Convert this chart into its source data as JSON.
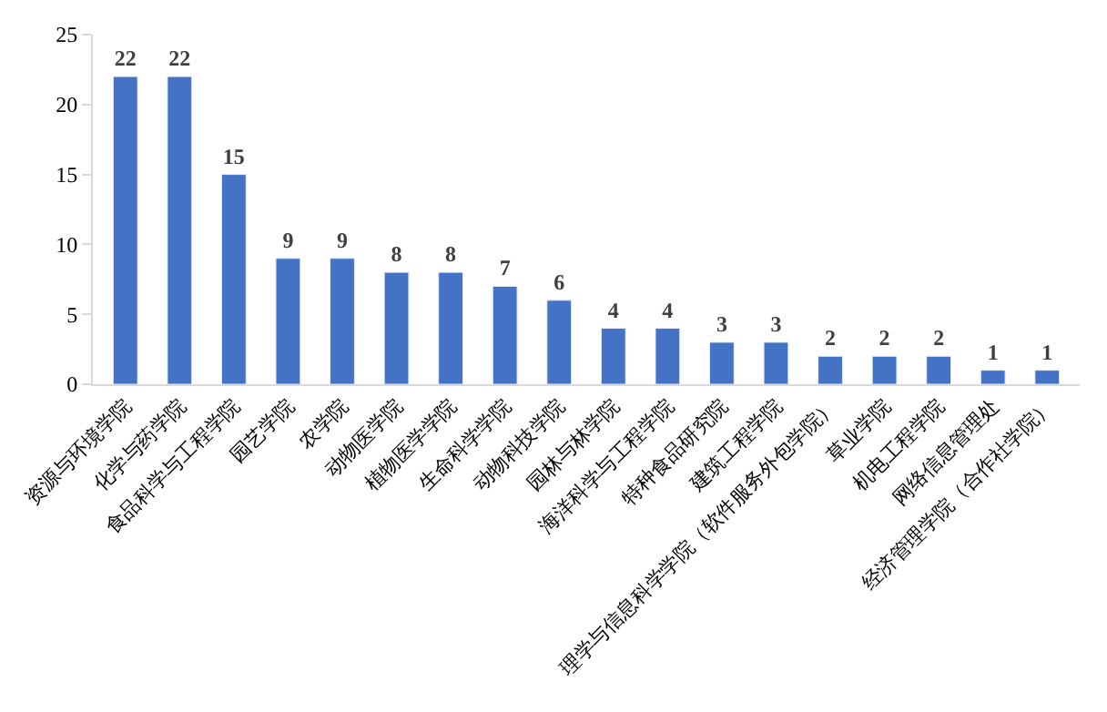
{
  "chart_data": {
    "type": "bar",
    "categories": [
      "资源与环境学院",
      "化学与药学院",
      "食品科学与工程学院",
      "园艺学院",
      "农学院",
      "动物医学院",
      "植物医学学院",
      "生命科学学院",
      "动物科技学院",
      "园林与林学院",
      "海洋科学与工程学院",
      "特种食品研究院",
      "建筑工程学院",
      "理学与信息科学学院（软件服务外包学院）",
      "草业学院",
      "机电工程学院",
      "网络信息管理处",
      "经济管理学院（合作社学院）"
    ],
    "values": [
      22,
      22,
      15,
      9,
      9,
      8,
      8,
      7,
      6,
      4,
      4,
      3,
      3,
      2,
      2,
      2,
      1,
      1
    ],
    "color": "#4472c4",
    "ylim": [
      0,
      25
    ],
    "yticks": [
      0,
      5,
      10,
      15,
      20,
      25
    ],
    "grid": false,
    "data_labels": true,
    "legend": false
  }
}
